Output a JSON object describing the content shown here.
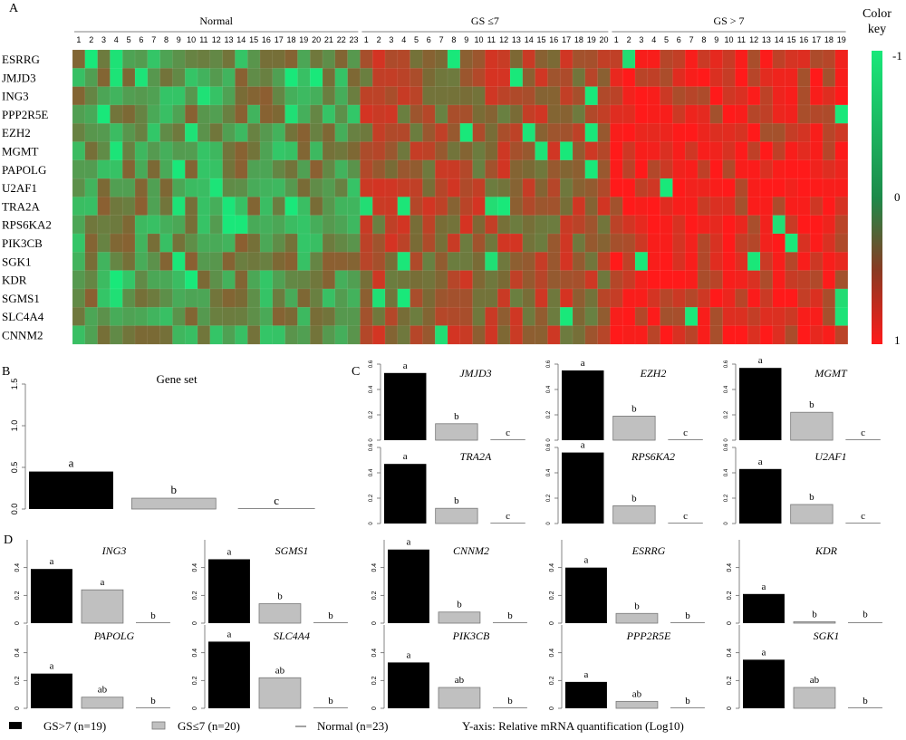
{
  "panel_labels": {
    "A": "A",
    "B": "B",
    "C": "C",
    "D": "D"
  },
  "colors": {
    "black_bar": "#000000",
    "grey_bar": "#c0c0c0",
    "heat_up": "#ff1a1a",
    "heat_mid": "#7a6a35",
    "heat_down": "#19e87a",
    "axis": "#555555"
  },
  "heatmap": {
    "groups": [
      {
        "label": "Normal",
        "n": 23
      },
      {
        "label": "GS ≤7",
        "n": 20
      },
      {
        "label": "GS > 7",
        "n": 19
      }
    ],
    "genes": [
      "ESRRG",
      "JMJD3",
      "ING3",
      "PPP2R5E",
      "EZH2",
      "MGMT",
      "PAPOLG",
      "U2AF1",
      "TRA2A",
      "RPS6KA2",
      "PIK3CB",
      "SGK1",
      "KDR",
      "SGMS1",
      "SLC4A4",
      "CNNM2"
    ],
    "color_key": {
      "title_line1": "Color",
      "title_line2": "key",
      "ticks": [
        "-1",
        "0",
        "1"
      ]
    }
  },
  "chart_data": [
    {
      "type": "heatmap",
      "panel": "A",
      "rows": [
        "ESRRG",
        "JMJD3",
        "ING3",
        "PPP2R5E",
        "EZH2",
        "MGMT",
        "PAPOLG",
        "U2AF1",
        "TRA2A",
        "RPS6KA2",
        "PIK3CB",
        "SGK1",
        "KDR",
        "SGMS1",
        "SLC4A4",
        "CNNM2"
      ],
      "column_groups": [
        "Normal",
        "GS ≤7",
        "GS > 7"
      ],
      "group_sizes": [
        23,
        20,
        19
      ],
      "value_range": [
        -1,
        1
      ],
      "group_mean_values": [
        -0.3,
        0.25,
        0.75
      ]
    },
    {
      "type": "bar",
      "panel": "B",
      "title": "Gene set",
      "categories": [
        "GS>7",
        "GS≤7",
        "Normal"
      ],
      "values": [
        0.45,
        0.13,
        0.0
      ],
      "letters": [
        "a",
        "b",
        "c"
      ],
      "ylim": [
        0,
        1.5
      ],
      "yticks": [
        "0.0",
        "0.5",
        "1.0",
        "1.5"
      ]
    },
    {
      "type": "bar",
      "panel": "C",
      "yticks": [
        "0",
        "0.2",
        "0.4",
        "0.6"
      ],
      "ylim": [
        0,
        0.6
      ],
      "categories": [
        "GS>7",
        "GS≤7",
        "Normal"
      ],
      "genes": [
        {
          "title": "JMJD3",
          "values": [
            0.53,
            0.13,
            0.0
          ],
          "letters": [
            "a",
            "b",
            "c"
          ]
        },
        {
          "title": "EZH2",
          "values": [
            0.55,
            0.19,
            0.0
          ],
          "letters": [
            "a",
            "b",
            "c"
          ]
        },
        {
          "title": "MGMT",
          "values": [
            0.57,
            0.22,
            0.0
          ],
          "letters": [
            "a",
            "b",
            "c"
          ]
        },
        {
          "title": "TRA2A",
          "values": [
            0.47,
            0.12,
            0.0
          ],
          "letters": [
            "a",
            "b",
            "c"
          ]
        },
        {
          "title": "RPS6KA2",
          "values": [
            0.56,
            0.14,
            0.0
          ],
          "letters": [
            "a",
            "b",
            "c"
          ]
        },
        {
          "title": "U2AF1",
          "values": [
            0.43,
            0.15,
            0.0
          ],
          "letters": [
            "a",
            "b",
            "c"
          ]
        }
      ]
    },
    {
      "type": "bar",
      "panel": "D",
      "yticks": [
        "0",
        "0.2",
        "0.4"
      ],
      "ylim": [
        0,
        0.6
      ],
      "categories": [
        "GS>7",
        "GS≤7",
        "Normal"
      ],
      "genes": [
        {
          "title": "ING3",
          "values": [
            0.39,
            0.24,
            0.0
          ],
          "letters": [
            "a",
            "a",
            "b"
          ]
        },
        {
          "title": "SGMS1",
          "values": [
            0.46,
            0.14,
            0.0
          ],
          "letters": [
            "a",
            "b",
            "b"
          ]
        },
        {
          "title": "CNNM2",
          "values": [
            0.53,
            0.08,
            0.0
          ],
          "letters": [
            "a",
            "b",
            "b"
          ]
        },
        {
          "title": "ESRRG",
          "values": [
            0.4,
            0.07,
            0.0
          ],
          "letters": [
            "a",
            "b",
            "b"
          ]
        },
        {
          "title": "KDR",
          "values": [
            0.21,
            0.01,
            0.01
          ],
          "letters": [
            "a",
            "b",
            "b"
          ]
        },
        {
          "title": "PAPOLG",
          "values": [
            0.25,
            0.08,
            0.0
          ],
          "letters": [
            "a",
            "ab",
            "b"
          ]
        },
        {
          "title": "SLC4A4",
          "values": [
            0.48,
            0.22,
            0.0
          ],
          "letters": [
            "a",
            "ab",
            "b"
          ]
        },
        {
          "title": "PIK3CB",
          "values": [
            0.33,
            0.15,
            0.0
          ],
          "letters": [
            "a",
            "ab",
            "b"
          ]
        },
        {
          "title": "PPP2R5E",
          "values": [
            0.19,
            0.05,
            0.0
          ],
          "letters": [
            "a",
            "ab",
            "b"
          ]
        },
        {
          "title": "SGK1",
          "values": [
            0.35,
            0.15,
            0.0
          ],
          "letters": [
            "a",
            "ab",
            "b"
          ]
        }
      ]
    }
  ],
  "legend": {
    "items": [
      {
        "label": "GS>7 (n=19)"
      },
      {
        "label": "GS≤7 (n=20)"
      },
      {
        "label": "Normal (n=23)"
      }
    ],
    "yaxis_note": "Y-axis: Relative mRNA quantification (Log10)"
  }
}
